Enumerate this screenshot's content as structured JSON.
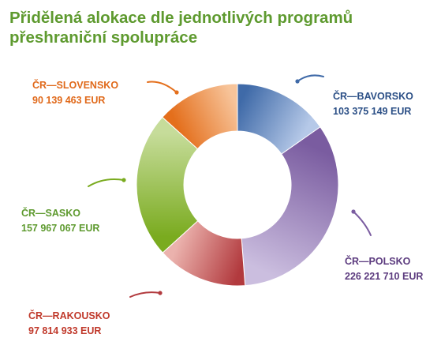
{
  "title_lines": [
    "Přidělená alokace dle jednotlivých programů",
    "přeshraniční spolupráce"
  ],
  "chart_data": {
    "type": "pie",
    "unit": "EUR",
    "slices": [
      {
        "name": "ČR—BAVORSKO",
        "value": 103375149,
        "value_label": "103 375 149  EUR",
        "color": "#3f6aa8",
        "color_light": "#b6c9e8",
        "text_color": "#2b4f86"
      },
      {
        "name": "ČR—POLSKO",
        "value": 226221710,
        "value_label": "226 221 710  EUR",
        "color": "#7a5ca0",
        "color_light": "#cbbedf",
        "text_color": "#5b3a7e"
      },
      {
        "name": "ČR—RAKOUSKO",
        "value": 97814933,
        "value_label": "97 814 933  EUR",
        "color": "#b23a3e",
        "color_light": "#ebb2ad",
        "text_color": "#c0392b"
      },
      {
        "name": "ČR—SASKO",
        "value": 157967067,
        "value_label": "157 967 067  EUR",
        "color": "#7aab1f",
        "color_light": "#c6dc9a",
        "text_color": "#5e9a2f"
      },
      {
        "name": "ČR—SLOVENSKO",
        "value": 90139463,
        "value_label": "90 139 463  EUR",
        "color": "#e46f1c",
        "color_light": "#f7c49a",
        "text_color": "#e0691a"
      }
    ]
  }
}
